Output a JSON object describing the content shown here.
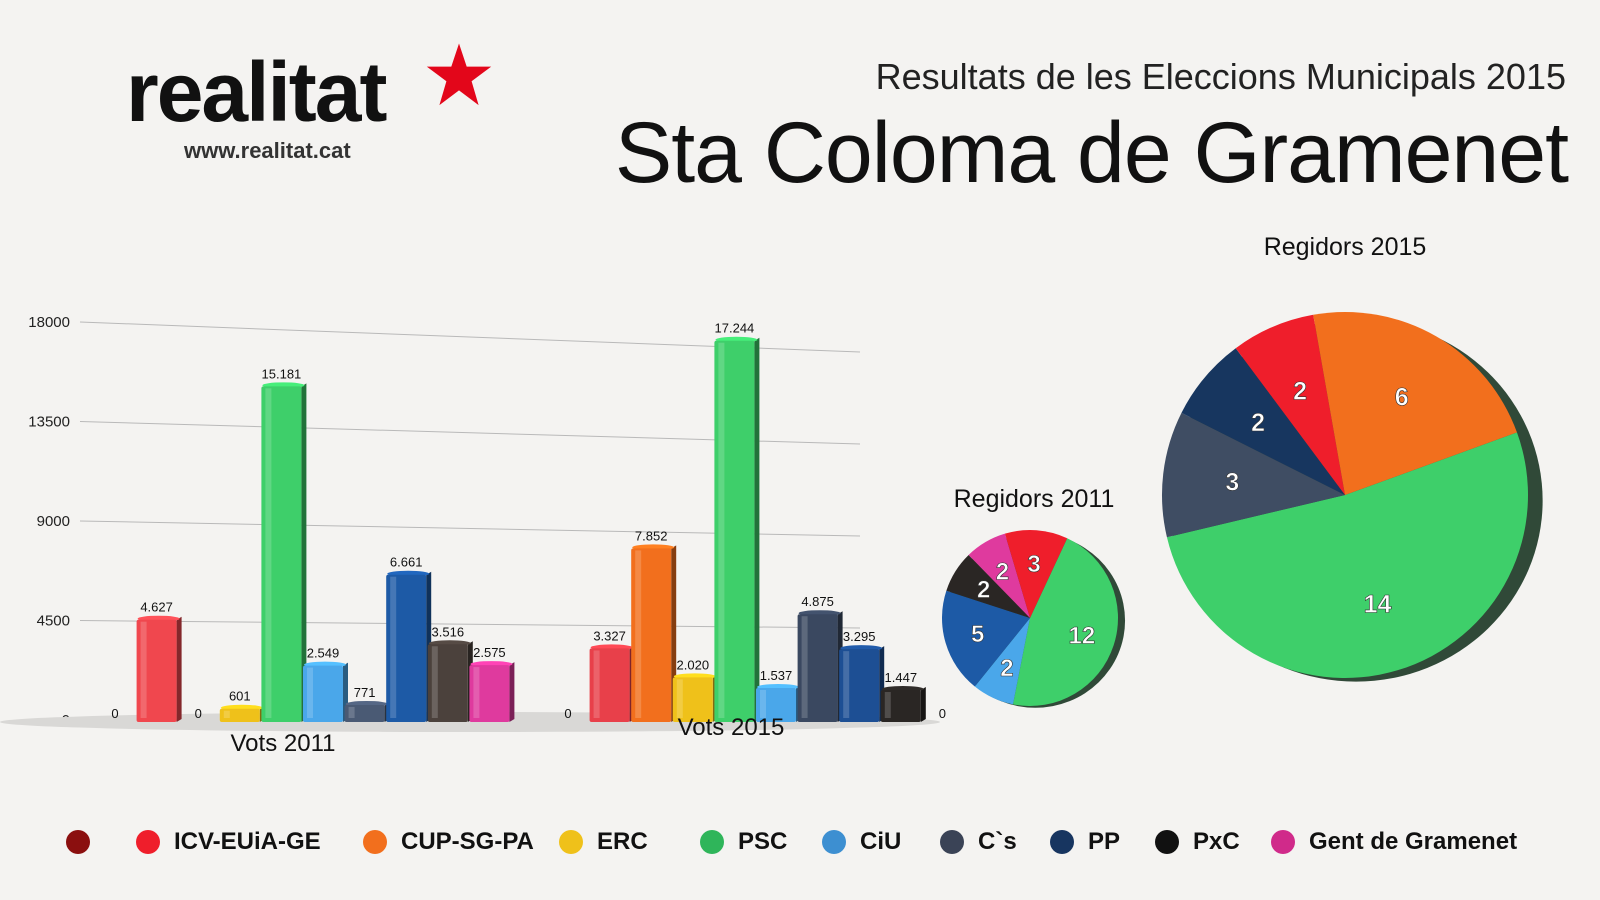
{
  "logo": {
    "word": "realitat",
    "url": "www.realitat.cat",
    "star_color": "#e3061a"
  },
  "header": {
    "subtitle": "Resultats de les Eleccions Municipals 2015",
    "title": "Sta Coloma de Gramenet"
  },
  "chart_data": [
    {
      "type": "bar",
      "ylim": [
        0,
        18000
      ],
      "yticks": [
        0,
        4500,
        9000,
        13500,
        18000
      ],
      "grid": true,
      "groups": [
        {
          "label": "Vots 2011",
          "bars": [
            {
              "party": "",
              "value": 0,
              "label": "0",
              "color": "#8b0f0f"
            },
            {
              "party": "ICV-EUiA-GE",
              "value": 4627,
              "label": "4.627",
              "color": "#f0474e"
            },
            {
              "party": "CUP-SG-PA",
              "value": 0,
              "label": "0",
              "color": "#f26f1d"
            },
            {
              "party": "ERC",
              "value": 601,
              "label": "601",
              "color": "#efc11a"
            },
            {
              "party": "PSC",
              "value": 15181,
              "label": "15.181",
              "color": "#3ecf6a"
            },
            {
              "party": "CiU",
              "value": 2549,
              "label": "2.549",
              "color": "#4aa7ea"
            },
            {
              "party": "C`s",
              "value": 771,
              "label": "771",
              "color": "#4a5a74"
            },
            {
              "party": "PP",
              "value": 6661,
              "label": "6.661",
              "color": "#1d5aa6"
            },
            {
              "party": "PxC",
              "value": 3516,
              "label": "3.516",
              "color": "#4b413c"
            },
            {
              "party": "Gent de Gramenet",
              "value": 2575,
              "label": "2.575",
              "color": "#df3a9e"
            }
          ]
        },
        {
          "label": "Vots 2015",
          "bars": [
            {
              "party": "",
              "value": 0,
              "label": "0",
              "color": "#8b0f0f"
            },
            {
              "party": "ICV-EUiA-GE",
              "value": 3327,
              "label": "3.327",
              "color": "#e8404a"
            },
            {
              "party": "CUP-SG-PA",
              "value": 7852,
              "label": "7.852",
              "color": "#f26f1d"
            },
            {
              "party": "ERC",
              "value": 2020,
              "label": "2.020",
              "color": "#efc11a"
            },
            {
              "party": "PSC",
              "value": 17244,
              "label": "17.244",
              "color": "#3ecf6a"
            },
            {
              "party": "CiU",
              "value": 1537,
              "label": "1.537",
              "color": "#4aa7ea"
            },
            {
              "party": "C`s",
              "value": 4875,
              "label": "4.875",
              "color": "#3a4860"
            },
            {
              "party": "PP",
              "value": 3295,
              "label": "3.295",
              "color": "#1d4f94"
            },
            {
              "party": "PxC",
              "value": 1447,
              "label": "1.447",
              "color": "#2a2624"
            },
            {
              "party": "Gent de Gramenet",
              "value": 0,
              "label": "0",
              "color": "#df3a9e"
            }
          ]
        }
      ]
    },
    {
      "type": "pie",
      "title": "Regidors 2011",
      "slices": [
        {
          "party": "PSC",
          "value": 12,
          "color": "#3ecf6a"
        },
        {
          "party": "CiU",
          "value": 2,
          "color": "#4aa7ea"
        },
        {
          "party": "PP",
          "value": 5,
          "color": "#1d5aa6"
        },
        {
          "party": "PxC",
          "value": 2,
          "color": "#2a2624"
        },
        {
          "party": "Gent de Gramenet",
          "value": 2,
          "color": "#df3a9e"
        },
        {
          "party": "ICV-EUiA-GE",
          "value": 3,
          "color": "#ef1e2b"
        }
      ]
    },
    {
      "type": "pie",
      "title": "Regidors 2015",
      "slices": [
        {
          "party": "PSC",
          "value": 14,
          "color": "#3ecf6a"
        },
        {
          "party": "C`s",
          "value": 3,
          "color": "#3f4d63"
        },
        {
          "party": "PP",
          "value": 2,
          "color": "#17365f"
        },
        {
          "party": "ICV-EUiA-GE",
          "value": 2,
          "color": "#ef1e2b"
        },
        {
          "party": "CUP-SG-PA",
          "value": 6,
          "color": "#f26f1d"
        }
      ]
    }
  ],
  "legend": [
    {
      "label": "",
      "color": "#8b0f0f"
    },
    {
      "label": "ICV-EUiA-GE",
      "color": "#ef1e2b"
    },
    {
      "label": "CUP-SG-PA",
      "color": "#f26f1d"
    },
    {
      "label": "ERC",
      "color": "#efc11a"
    },
    {
      "label": "PSC",
      "color": "#2fb55a"
    },
    {
      "label": "CiU",
      "color": "#3d8fd1"
    },
    {
      "label": "C`s",
      "color": "#3a4356"
    },
    {
      "label": "PP",
      "color": "#173560"
    },
    {
      "label": "PxC",
      "color": "#111111"
    },
    {
      "label": "Gent de Gramenet",
      "color": "#d02a8a"
    }
  ]
}
